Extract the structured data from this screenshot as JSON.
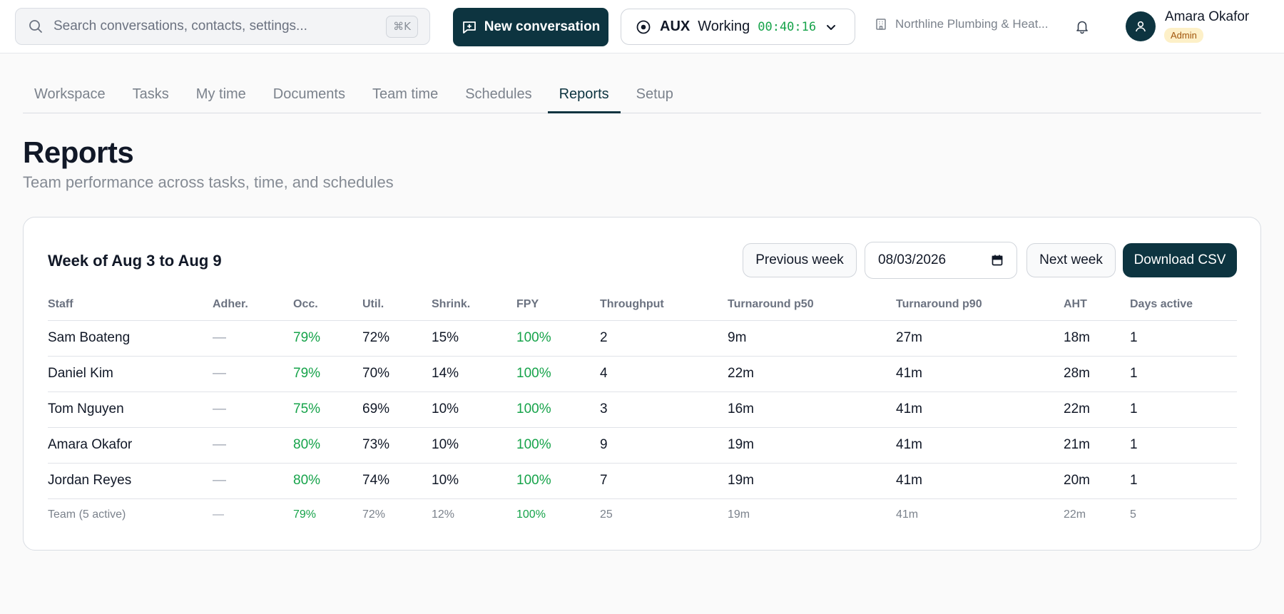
{
  "topbar": {
    "search_placeholder": "Search conversations, contacts, settings...",
    "search_shortcut": "⌘K",
    "new_conversation_label": "New conversation",
    "aux": {
      "label": "AUX",
      "state": "Working",
      "timer": "00:40:16"
    },
    "organization": "Northline Plumbing & Heat...",
    "user": {
      "name": "Amara Okafor",
      "role": "Admin"
    }
  },
  "tabs": [
    {
      "label": "Workspace",
      "active": false
    },
    {
      "label": "Tasks",
      "active": false
    },
    {
      "label": "My time",
      "active": false
    },
    {
      "label": "Documents",
      "active": false
    },
    {
      "label": "Team time",
      "active": false
    },
    {
      "label": "Schedules",
      "active": false
    },
    {
      "label": "Reports",
      "active": true
    },
    {
      "label": "Setup",
      "active": false
    }
  ],
  "page": {
    "title": "Reports",
    "subtitle": "Team performance across tasks, time, and schedules"
  },
  "report": {
    "week_title": "Week of Aug 3 to Aug 9",
    "previous_week_label": "Previous week",
    "date_value": "08/03/2026",
    "next_week_label": "Next week",
    "download_label": "Download CSV",
    "columns": [
      "Staff",
      "Adher.",
      "Occ.",
      "Util.",
      "Shrink.",
      "FPY",
      "Throughput",
      "Turnaround p50",
      "Turnaround p90",
      "AHT",
      "Days active"
    ],
    "rows": [
      [
        "Sam Boateng",
        "—",
        "79%",
        "72%",
        "15%",
        "100%",
        "2",
        "9m",
        "27m",
        "18m",
        "1"
      ],
      [
        "Daniel Kim",
        "—",
        "79%",
        "70%",
        "14%",
        "100%",
        "4",
        "22m",
        "41m",
        "28m",
        "1"
      ],
      [
        "Tom Nguyen",
        "—",
        "75%",
        "69%",
        "10%",
        "100%",
        "3",
        "16m",
        "41m",
        "22m",
        "1"
      ],
      [
        "Amara Okafor",
        "—",
        "80%",
        "73%",
        "10%",
        "100%",
        "9",
        "19m",
        "41m",
        "21m",
        "1"
      ],
      [
        "Jordan Reyes",
        "—",
        "80%",
        "74%",
        "10%",
        "100%",
        "7",
        "19m",
        "41m",
        "20m",
        "1"
      ]
    ],
    "team_row": [
      "Team (5 active)",
      "—",
      "79%",
      "72%",
      "12%",
      "100%",
      "25",
      "19m",
      "41m",
      "22m",
      "5"
    ]
  },
  "colors": {
    "brand": "#0d3440",
    "good": "#16a34a",
    "muted": "#7b828c",
    "badge_bg": "#fdf0c8",
    "badge_text": "#a1560c"
  },
  "icons": {
    "search": "search-icon",
    "new_conversation": "message-plus-icon",
    "aux_status": "status-dot-icon",
    "aux_chevron": "chevron-down-icon",
    "organization": "building-icon",
    "notifications": "bell-icon",
    "avatar": "user-icon",
    "date_picker": "calendar-icon"
  }
}
